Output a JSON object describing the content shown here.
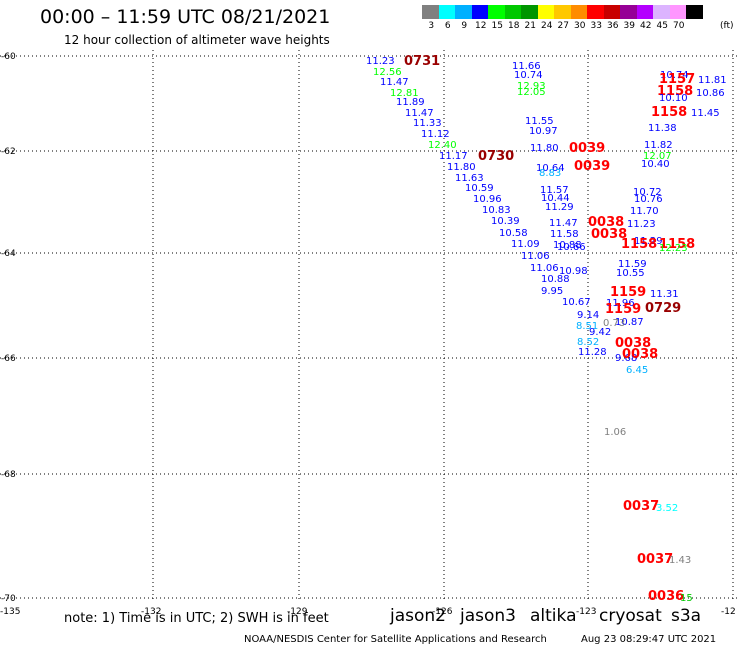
{
  "title": "00:00 – 11:59 UTC 08/21/2021",
  "subtitle": "12 hour collection of altimeter wave heights",
  "legend": {
    "unit": "(ft)",
    "items": [
      {
        "label": "3",
        "color": "#808080"
      },
      {
        "label": "6",
        "color": "#00ffff"
      },
      {
        "label": "9",
        "color": "#00b0ff"
      },
      {
        "label": "12",
        "color": "#0000ff"
      },
      {
        "label": "15",
        "color": "#00ff00"
      },
      {
        "label": "18",
        "color": "#00c800"
      },
      {
        "label": "21",
        "color": "#009600"
      },
      {
        "label": "24",
        "color": "#ffff00"
      },
      {
        "label": "27",
        "color": "#ffc800"
      },
      {
        "label": "30",
        "color": "#ff8c00"
      },
      {
        "label": "33",
        "color": "#ff0000"
      },
      {
        "label": "36",
        "color": "#c80000"
      },
      {
        "label": "39",
        "color": "#960096"
      },
      {
        "label": "42",
        "color": "#b400ff"
      },
      {
        "label": "45",
        "color": "#dcb4ff"
      },
      {
        "label": "70",
        "color": "#ff96ff"
      },
      {
        "label": "",
        "color": "#000000"
      }
    ]
  },
  "axes": {
    "lat_labels": [
      "-60",
      "-62",
      "-64",
      "-66",
      "-68",
      "-70"
    ],
    "lon_labels": [
      "-135",
      "-132",
      "-129",
      "-126",
      "-123",
      "-12"
    ]
  },
  "readings": [
    {
      "t": "11.23",
      "c": "#0000ff"
    },
    {
      "t": "0731",
      "c": "#990000"
    },
    {
      "t": "12.56",
      "c": "#00ff00"
    },
    {
      "t": "11.47",
      "c": "#0000ff"
    },
    {
      "t": "12.81",
      "c": "#00ff00"
    },
    {
      "t": "11.89",
      "c": "#0000ff"
    },
    {
      "t": "11.47",
      "c": "#0000ff"
    },
    {
      "t": "11.33",
      "c": "#0000ff"
    },
    {
      "t": "11.12",
      "c": "#0000ff"
    },
    {
      "t": "12.40",
      "c": "#00ff00"
    },
    {
      "t": "11.17",
      "c": "#0000ff"
    },
    {
      "t": "0730",
      "c": "#990000"
    },
    {
      "t": "11.80",
      "c": "#0000ff"
    },
    {
      "t": "11.63",
      "c": "#0000ff"
    },
    {
      "t": "10.59",
      "c": "#0000ff"
    },
    {
      "t": "10.96",
      "c": "#0000ff"
    },
    {
      "t": "10.83",
      "c": "#0000ff"
    },
    {
      "t": "10.39",
      "c": "#0000ff"
    },
    {
      "t": "10.58",
      "c": "#0000ff"
    },
    {
      "t": "11.09",
      "c": "#0000ff"
    },
    {
      "t": "11.06",
      "c": "#0000ff"
    },
    {
      "t": "11.06",
      "c": "#0000ff"
    },
    {
      "t": "10.88",
      "c": "#0000ff"
    },
    {
      "t": "9.95",
      "c": "#0000ff"
    },
    {
      "t": "11.66",
      "c": "#0000ff"
    },
    {
      "t": "10.74",
      "c": "#0000ff"
    },
    {
      "t": "12.93",
      "c": "#00ff00"
    },
    {
      "t": "12.05",
      "c": "#00ff00"
    },
    {
      "t": "11.55",
      "c": "#0000ff"
    },
    {
      "t": "10.97",
      "c": "#0000ff"
    },
    {
      "t": "11.80",
      "c": "#0000ff"
    },
    {
      "t": "0039",
      "c": "#ff0000"
    },
    {
      "t": "10.64",
      "c": "#0000ff"
    },
    {
      "t": "8.83",
      "c": "#00b0ff"
    },
    {
      "t": "0039",
      "c": "#ff0000"
    },
    {
      "t": "11.57",
      "c": "#0000ff"
    },
    {
      "t": "10.44",
      "c": "#0000ff"
    },
    {
      "t": "11.29",
      "c": "#0000ff"
    },
    {
      "t": "11.47",
      "c": "#0000ff"
    },
    {
      "t": "11.58",
      "c": "#0000ff"
    },
    {
      "t": "0038",
      "c": "#ff0000"
    },
    {
      "t": "0038",
      "c": "#ff0000"
    },
    {
      "t": "10.88",
      "c": "#0000ff"
    },
    {
      "t": "10.66",
      "c": "#0000ff"
    },
    {
      "t": "10.98",
      "c": "#0000ff"
    },
    {
      "t": "10.67",
      "c": "#0000ff"
    },
    {
      "t": "9.14",
      "c": "#0000ff"
    },
    {
      "t": "8.51",
      "c": "#00b0ff"
    },
    {
      "t": "9.42",
      "c": "#0000ff"
    },
    {
      "t": "8.52",
      "c": "#00b0ff"
    },
    {
      "t": "11.28",
      "c": "#0000ff"
    },
    {
      "t": "9.68",
      "c": "#0000ff"
    },
    {
      "t": "6.45",
      "c": "#00b0ff"
    },
    {
      "t": "0038",
      "c": "#ff0000"
    },
    {
      "t": "0038",
      "c": "#ff0000"
    },
    {
      "t": "10.74",
      "c": "#0000ff"
    },
    {
      "t": "1157",
      "c": "#ff0000"
    },
    {
      "t": "11.81",
      "c": "#0000ff"
    },
    {
      "t": "1158",
      "c": "#ff0000"
    },
    {
      "t": "10.86",
      "c": "#0000ff"
    },
    {
      "t": "10.10",
      "c": "#0000ff"
    },
    {
      "t": "1158",
      "c": "#ff0000"
    },
    {
      "t": "11.45",
      "c": "#0000ff"
    },
    {
      "t": "11.38",
      "c": "#0000ff"
    },
    {
      "t": "11.82",
      "c": "#0000ff"
    },
    {
      "t": "12.07",
      "c": "#00ff00"
    },
    {
      "t": "10.40",
      "c": "#0000ff"
    },
    {
      "t": "10.72",
      "c": "#0000ff"
    },
    {
      "t": "10.76",
      "c": "#0000ff"
    },
    {
      "t": "11.70",
      "c": "#0000ff"
    },
    {
      "t": "11.23",
      "c": "#0000ff"
    },
    {
      "t": "11.29",
      "c": "#0000ff"
    },
    {
      "t": "1158",
      "c": "#ff0000"
    },
    {
      "t": "1158",
      "c": "#ff0000"
    },
    {
      "t": "12.23",
      "c": "#00ff00"
    },
    {
      "t": "11.59",
      "c": "#0000ff"
    },
    {
      "t": "10.55",
      "c": "#0000ff"
    },
    {
      "t": "1159",
      "c": "#ff0000"
    },
    {
      "t": "11.31",
      "c": "#0000ff"
    },
    {
      "t": "11.96",
      "c": "#0000ff"
    },
    {
      "t": "1159",
      "c": "#ff0000"
    },
    {
      "t": "0729",
      "c": "#990000"
    },
    {
      "t": "10.87",
      "c": "#0000ff"
    },
    {
      "t": "0.73",
      "c": "#808080"
    },
    {
      "t": "1.06",
      "c": "#808080"
    },
    {
      "t": "0037",
      "c": "#ff0000"
    },
    {
      "t": "3.52",
      "c": "#00ffff"
    },
    {
      "t": "0037",
      "c": "#ff0000"
    },
    {
      "t": "1.43",
      "c": "#808080"
    },
    {
      "t": "0036",
      "c": "#ff0000"
    },
    {
      "t": "15",
      "c": "#00c800"
    }
  ],
  "note": "note: 1) Time is in UTC; 2) SWH is in feet",
  "satellites": [
    {
      "name": "jason2",
      "color": "#0000ff"
    },
    {
      "name": "jason3",
      "color": "#009600"
    },
    {
      "name": "altika",
      "color": "#ff8c00"
    },
    {
      "name": "cryosat",
      "color": "#ff0000"
    },
    {
      "name": "s3a",
      "color": "#990000"
    }
  ],
  "credit": "NOAA/NESDIS Center for Satellite Applications and Research",
  "timestamp": "Aug 23 08:29:47 UTC 2021"
}
